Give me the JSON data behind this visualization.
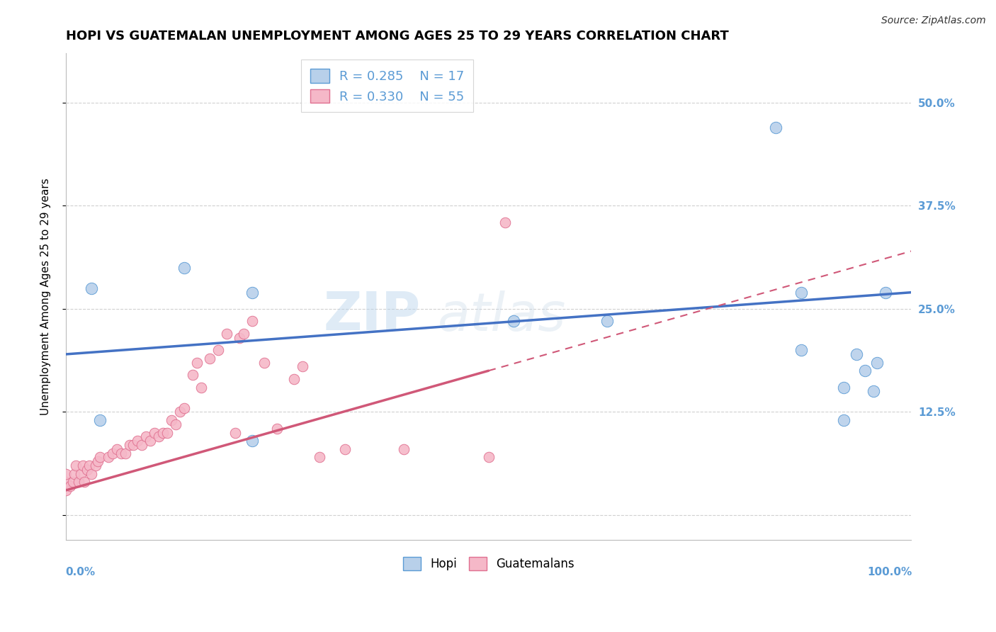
{
  "title": "HOPI VS GUATEMALAN UNEMPLOYMENT AMONG AGES 25 TO 29 YEARS CORRELATION CHART",
  "source": "Source: ZipAtlas.com",
  "ylabel": "Unemployment Among Ages 25 to 29 years",
  "ytick_values": [
    0.0,
    0.125,
    0.25,
    0.375,
    0.5
  ],
  "ytick_labels": [
    "",
    "12.5%",
    "25.0%",
    "37.5%",
    "50.0%"
  ],
  "xlim": [
    0.0,
    1.0
  ],
  "ylim": [
    -0.03,
    0.56
  ],
  "legend_r_hopi": "R = 0.285",
  "legend_n_hopi": "N = 17",
  "legend_r_guatemalan": "R = 0.330",
  "legend_n_guatemalan": "N = 55",
  "hopi_face_color": "#b8d0ea",
  "hopi_edge_color": "#5b9bd5",
  "guatemalan_face_color": "#f5b8c8",
  "guatemalan_edge_color": "#e07090",
  "hopi_line_color": "#4472c4",
  "guatemalan_line_color": "#d05878",
  "hopi_scatter_x": [
    0.03,
    0.04,
    0.14,
    0.22,
    0.22,
    0.53,
    0.64,
    0.84,
    0.87,
    0.87,
    0.92,
    0.92,
    0.935,
    0.945,
    0.955,
    0.96,
    0.97
  ],
  "hopi_scatter_y": [
    0.275,
    0.115,
    0.3,
    0.27,
    0.09,
    0.235,
    0.235,
    0.47,
    0.27,
    0.2,
    0.155,
    0.115,
    0.195,
    0.175,
    0.15,
    0.185,
    0.27
  ],
  "guatemalan_scatter_x": [
    0.0,
    0.0,
    0.0,
    0.005,
    0.008,
    0.01,
    0.012,
    0.015,
    0.018,
    0.02,
    0.022,
    0.025,
    0.028,
    0.03,
    0.035,
    0.038,
    0.04,
    0.05,
    0.055,
    0.06,
    0.065,
    0.07,
    0.075,
    0.08,
    0.085,
    0.09,
    0.095,
    0.1,
    0.105,
    0.11,
    0.115,
    0.12,
    0.125,
    0.13,
    0.135,
    0.14,
    0.15,
    0.155,
    0.16,
    0.17,
    0.18,
    0.19,
    0.2,
    0.205,
    0.21,
    0.22,
    0.235,
    0.25,
    0.27,
    0.28,
    0.3,
    0.33,
    0.4,
    0.5,
    0.52
  ],
  "guatemalan_scatter_y": [
    0.03,
    0.04,
    0.05,
    0.035,
    0.04,
    0.05,
    0.06,
    0.04,
    0.05,
    0.06,
    0.04,
    0.055,
    0.06,
    0.05,
    0.06,
    0.065,
    0.07,
    0.07,
    0.075,
    0.08,
    0.075,
    0.075,
    0.085,
    0.085,
    0.09,
    0.085,
    0.095,
    0.09,
    0.1,
    0.095,
    0.1,
    0.1,
    0.115,
    0.11,
    0.125,
    0.13,
    0.17,
    0.185,
    0.155,
    0.19,
    0.2,
    0.22,
    0.1,
    0.215,
    0.22,
    0.235,
    0.185,
    0.105,
    0.165,
    0.18,
    0.07,
    0.08,
    0.08,
    0.07,
    0.355
  ],
  "hopi_trend_x0": 0.0,
  "hopi_trend_y0": 0.195,
  "hopi_trend_x1": 1.0,
  "hopi_trend_y1": 0.27,
  "guatemalan_trend_x0": 0.0,
  "guatemalan_trend_y0": 0.03,
  "guatemalan_trend_x1": 0.5,
  "guatemalan_trend_y1": 0.175,
  "guatemalan_trend_ext_x0": 0.5,
  "guatemalan_trend_ext_y0": 0.175,
  "guatemalan_trend_ext_x1": 1.0,
  "guatemalan_trend_ext_y1": 0.32,
  "background_color": "#ffffff",
  "grid_color": "#d0d0d0",
  "watermark_line1": "ZIP",
  "watermark_line2": "atlas",
  "text_color_blue": "#5b9bd5",
  "title_fontsize": 13,
  "axis_label_fontsize": 11,
  "tick_fontsize": 11,
  "legend_fontsize": 13
}
